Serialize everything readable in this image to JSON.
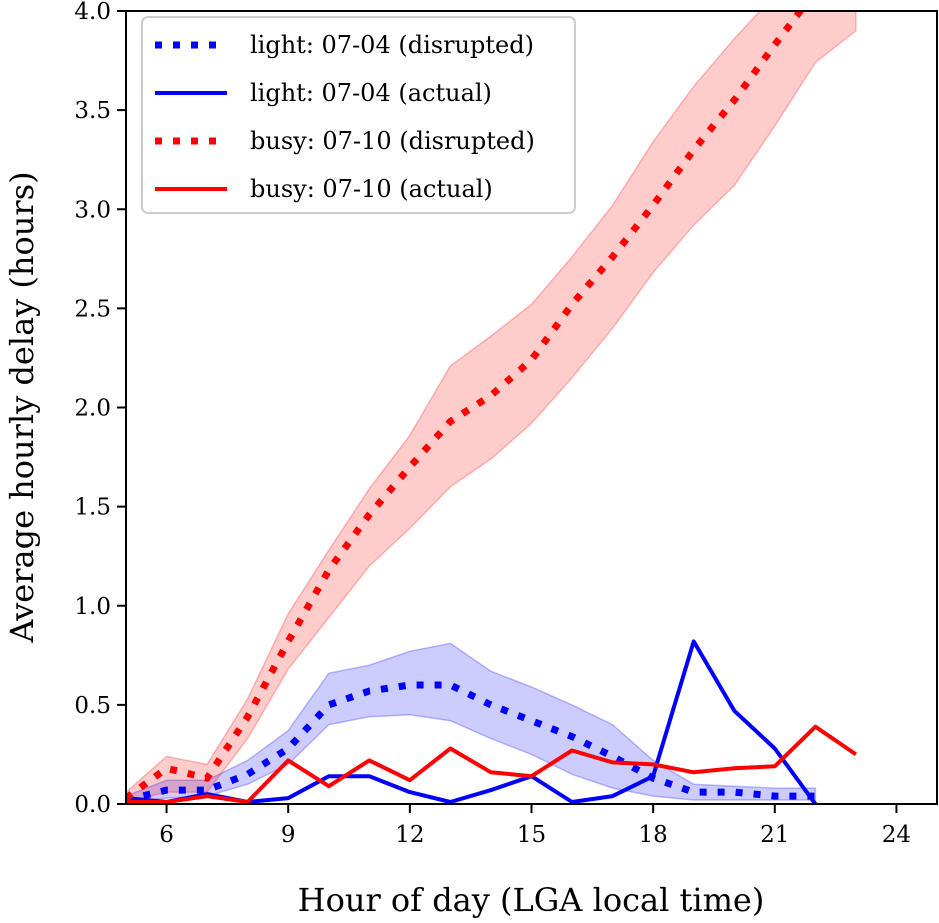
{
  "chart_data": {
    "type": "line",
    "xlabel": "Hour of day (LGA local time)",
    "ylabel": "Average hourly delay (hours)",
    "xlim": [
      5,
      25
    ],
    "ylim": [
      0,
      4.0
    ],
    "xticks": [
      6,
      9,
      12,
      15,
      18,
      21,
      24
    ],
    "yticks": [
      "0.0",
      "0.5",
      "1.0",
      "1.5",
      "2.0",
      "2.5",
      "3.0",
      "3.5",
      "4.0"
    ],
    "grid": false,
    "legend_position": "top-left",
    "series": [
      {
        "name": "light: 07-04 (disrupted)",
        "color": "#0000ff",
        "style": "dotted",
        "x": [
          5,
          6,
          7,
          8,
          9,
          10,
          11,
          12,
          13,
          14,
          15,
          16,
          17,
          18,
          19,
          20,
          21,
          22
        ],
        "y": [
          0.02,
          0.07,
          0.07,
          0.15,
          0.28,
          0.5,
          0.57,
          0.6,
          0.6,
          0.5,
          0.42,
          0.34,
          0.24,
          0.13,
          0.06,
          0.06,
          0.04,
          0.04
        ],
        "band_lower": [
          0.01,
          0.03,
          0.04,
          0.1,
          0.2,
          0.4,
          0.44,
          0.45,
          0.42,
          0.33,
          0.25,
          0.15,
          0.08,
          0.04,
          0.02,
          0.02,
          0.02,
          0.02
        ],
        "band_upper": [
          0.04,
          0.12,
          0.12,
          0.22,
          0.37,
          0.66,
          0.7,
          0.77,
          0.81,
          0.67,
          0.59,
          0.5,
          0.4,
          0.22,
          0.1,
          0.09,
          0.08,
          0.08
        ]
      },
      {
        "name": "light: 07-04 (actual)",
        "color": "#0000ff",
        "style": "solid",
        "x": [
          5,
          6,
          7,
          8,
          9,
          10,
          11,
          12,
          13,
          14,
          15,
          16,
          17,
          18,
          19,
          20,
          21,
          22
        ],
        "y": [
          0.03,
          0.01,
          0.05,
          0.01,
          0.03,
          0.14,
          0.14,
          0.06,
          0.01,
          0.07,
          0.14,
          0.01,
          0.04,
          0.14,
          0.82,
          0.47,
          0.28,
          0.0
        ]
      },
      {
        "name": "busy: 07-10 (disrupted)",
        "color": "#ff0000",
        "style": "dotted",
        "x": [
          5,
          6,
          7,
          8,
          9,
          10,
          11,
          12,
          13,
          14,
          15,
          16,
          17,
          18,
          19,
          20,
          21,
          22,
          23
        ],
        "y": [
          0.03,
          0.18,
          0.13,
          0.44,
          0.82,
          1.18,
          1.46,
          1.7,
          1.93,
          2.06,
          2.24,
          2.52,
          2.76,
          3.02,
          3.3,
          3.55,
          3.83,
          4.1,
          4.4
        ],
        "band_lower": [
          0.01,
          0.06,
          0.06,
          0.33,
          0.68,
          0.94,
          1.2,
          1.39,
          1.6,
          1.74,
          1.92,
          2.15,
          2.4,
          2.68,
          2.92,
          3.12,
          3.42,
          3.74,
          3.9
        ],
        "band_upper": [
          0.06,
          0.24,
          0.2,
          0.53,
          0.96,
          1.28,
          1.59,
          1.86,
          2.21,
          2.36,
          2.52,
          2.76,
          3.02,
          3.34,
          3.62,
          3.86,
          4.08,
          4.3,
          4.45
        ]
      },
      {
        "name": "busy: 07-10 (actual)",
        "color": "#ff0000",
        "style": "solid",
        "x": [
          5,
          6,
          7,
          8,
          9,
          10,
          11,
          12,
          13,
          14,
          15,
          16,
          17,
          18,
          19,
          20,
          21,
          22,
          23
        ],
        "y": [
          0.01,
          0.01,
          0.04,
          0.01,
          0.22,
          0.09,
          0.22,
          0.12,
          0.28,
          0.16,
          0.14,
          0.27,
          0.21,
          0.2,
          0.16,
          0.18,
          0.19,
          0.39,
          0.25
        ]
      }
    ]
  }
}
